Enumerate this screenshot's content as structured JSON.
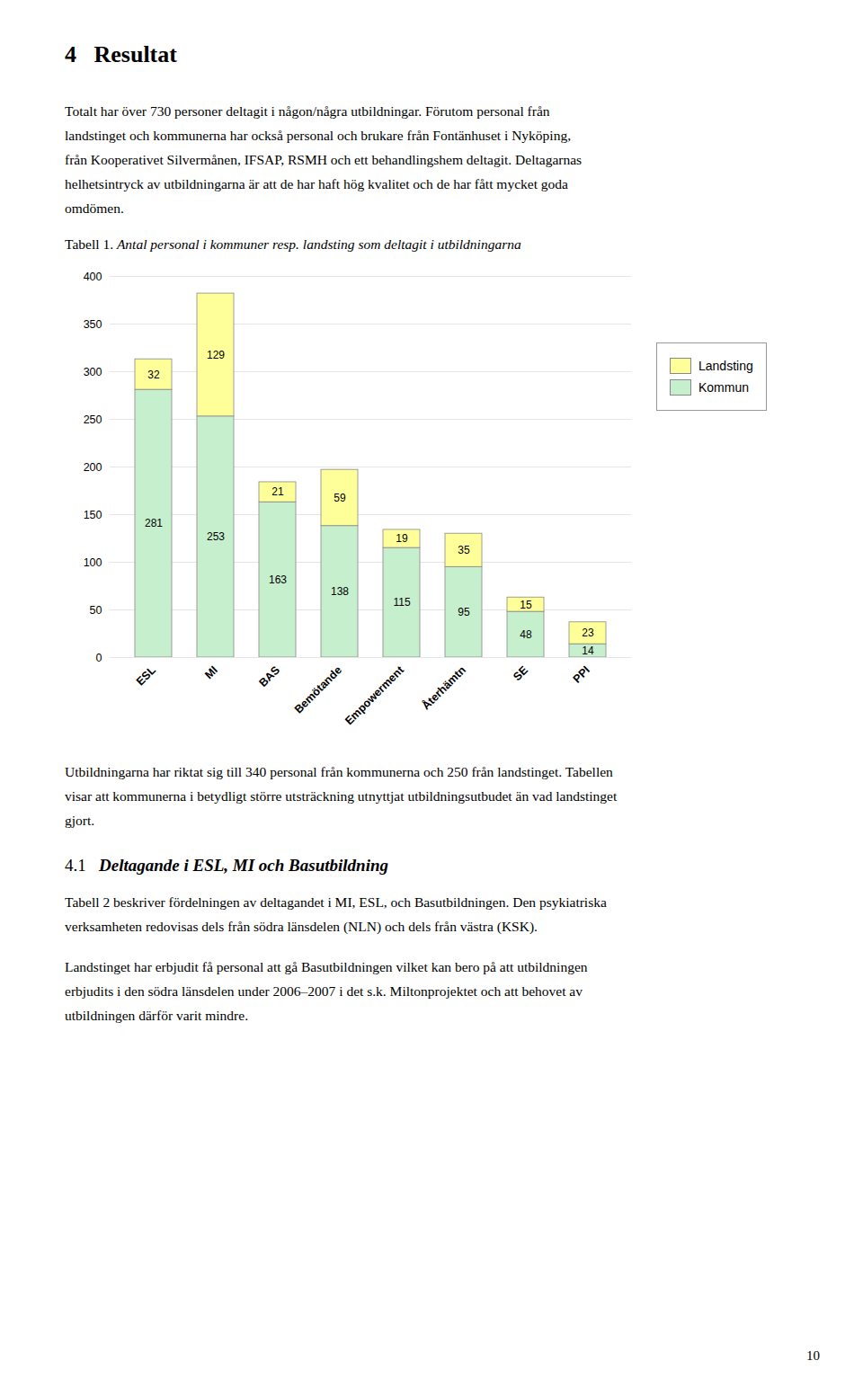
{
  "page": {
    "heading": "4   Resultat",
    "paragraphs_before": [
      [
        "Totalt har över 730 personer deltagit i någon/några utbildningar. Förutom personal från",
        "landstinget och kommunerna har också personal och brukare från Fontänhuset i Nyköping,",
        "från Kooperativet Silvermånen, IFSAP, RSMH och ett behandlingshem deltagit. Deltagarnas",
        "helhetsintryck av utbildningarna är att de har haft hög kvalitet och de har fått mycket goda",
        "omdömen."
      ]
    ],
    "paragraphs_after": [
      [
        "Utbildningarna har riktat sig till 340 personal från kommunerna och 250 från landstinget. Tabellen",
        "visar att kommunerna i betydligt större utsträckning utnyttjat utbildningsutbudet än vad landstinget",
        "gjort."
      ]
    ],
    "section": {
      "number": "4.1",
      "title": "Deltagande i ESL, MI och Basutbildning"
    },
    "section_paragraphs": [
      [
        "Tabell 2 beskriver fördelningen av deltagandet i MI, ESL, och Basutbildningen. Den psykiatriska",
        "verksamheten redovisas dels från södra länsdelen (NLN) och dels från västra (KSK)."
      ],
      [
        "Landstinget har erbjudit få personal att gå Basutbildningen vilket kan bero på att utbildningen",
        "erbjudits i den södra länsdelen under 2006–2007 i det s.k. Miltonprojektet och att behovet av",
        "utbildningen därför varit mindre."
      ]
    ],
    "page_number": "10"
  },
  "chart_data": {
    "type": "bar",
    "title": "Tabell 1. Antal personal i kommuner resp. landsting som deltagit i utbildningarna",
    "categories": [
      "ESL",
      "MI",
      "BAS",
      "Bemötande",
      "Empowerment",
      "Återhämtn",
      "SE",
      "PPI"
    ],
    "series": [
      {
        "name": "Kommun",
        "color": "#c6efce",
        "values": [
          281,
          253,
          163,
          138,
          115,
          95,
          48,
          14
        ]
      },
      {
        "name": "Landsting",
        "color": "#ffff99",
        "values": [
          32,
          129,
          21,
          59,
          19,
          35,
          15,
          23
        ]
      }
    ],
    "stacked": true,
    "data_labels": true,
    "ylim": [
      0,
      400
    ],
    "yticks": [
      0,
      50,
      100,
      150,
      200,
      250,
      300,
      350,
      400
    ],
    "grid": true,
    "legend": "right"
  }
}
